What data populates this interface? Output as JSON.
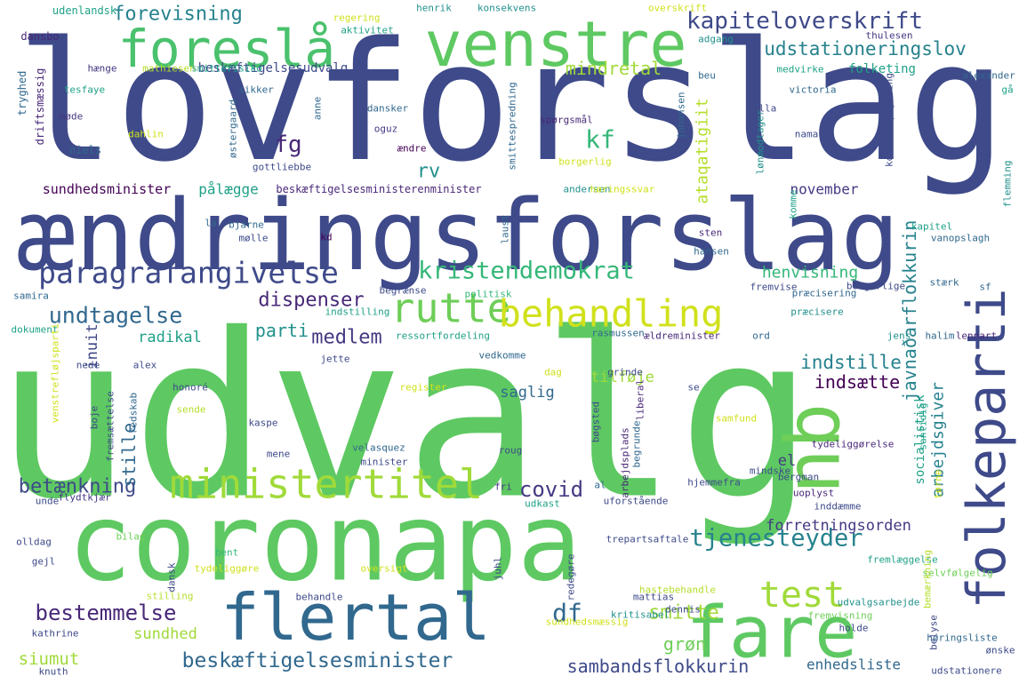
{
  "word_cloud": {
    "words": [
      {
        "text": "lovforslag",
        "color": "#3e4a89"
      },
      {
        "text": "udvalg",
        "color": "#5ec962"
      },
      {
        "text": "ændringsforslag",
        "color": "#3e4a89"
      },
      {
        "text": "coronapa",
        "color": "#5ec962"
      },
      {
        "text": "venstre",
        "color": "#5ec962"
      },
      {
        "text": "foreslå",
        "color": "#4ac16d"
      },
      {
        "text": "folkeparti",
        "color": "#3e4a89"
      },
      {
        "text": "fare",
        "color": "#5ec962"
      },
      {
        "text": "flertal",
        "color": "#31688e"
      },
      {
        "text": "nb",
        "color": "#6ece58"
      },
      {
        "text": "ministertitel",
        "color": "#a0da39"
      },
      {
        "text": "rutte",
        "color": "#6ece58"
      },
      {
        "text": "behandling",
        "color": "#d0e11c"
      },
      {
        "text": "paragrafangivelse",
        "color": "#3e4a89"
      },
      {
        "text": "kristendemokrat",
        "color": "#35b779"
      },
      {
        "text": "kapiteloverskrift",
        "color": "#3e4a89"
      },
      {
        "text": "udstationeringslov",
        "color": "#26828e"
      },
      {
        "text": "forevisning",
        "color": "#26828e"
      },
      {
        "text": "mindretal",
        "color": "#a0da39"
      },
      {
        "text": "tjenesteyder",
        "color": "#26828e"
      },
      {
        "text": "test",
        "color": "#a0da39"
      },
      {
        "text": "undtagelse",
        "color": "#31688e"
      },
      {
        "text": "bestemmelse",
        "color": "#482878"
      },
      {
        "text": "beskæftigelsesminister",
        "color": "#31688e"
      },
      {
        "text": "sambandsflokkurin",
        "color": "#3e4a89"
      },
      {
        "text": "javnaðarflokkurin",
        "color": "#26828e"
      },
      {
        "text": "arbejdsgiver",
        "color": "#26828e"
      },
      {
        "text": "betænkning",
        "color": "#3e4a89"
      },
      {
        "text": "siumut",
        "color": "#a0da39"
      },
      {
        "text": "indstille",
        "color": "#26828e"
      },
      {
        "text": "indsætte",
        "color": "#440154"
      },
      {
        "text": "dispenser",
        "color": "#482878"
      },
      {
        "text": "covid",
        "color": "#443983"
      },
      {
        "text": "medlem",
        "color": "#443983"
      },
      {
        "text": "parti",
        "color": "#21918c"
      },
      {
        "text": "df",
        "color": "#31688e"
      },
      {
        "text": "smitte",
        "color": "#a0da39"
      },
      {
        "text": "grøn",
        "color": "#6ece58"
      },
      {
        "text": "sundhed",
        "color": "#a0da39"
      },
      {
        "text": "forretningsorden",
        "color": "#443983"
      },
      {
        "text": "ataqatigiit",
        "color": "#b5de2b"
      },
      {
        "text": "kf",
        "color": "#35b779"
      },
      {
        "text": "fg",
        "color": "#482878"
      },
      {
        "text": "rv",
        "color": "#21918c"
      },
      {
        "text": "pålægge",
        "color": "#1fa188"
      },
      {
        "text": "november",
        "color": "#443983"
      },
      {
        "text": "henvisning",
        "color": "#35b779"
      },
      {
        "text": "radikal",
        "color": "#1fa188"
      },
      {
        "text": "inuit",
        "color": "#3e4a89"
      },
      {
        "text": "stille",
        "color": "#31688e"
      },
      {
        "text": "saglig",
        "color": "#31688e"
      },
      {
        "text": "tilføje",
        "color": "#a0da39"
      },
      {
        "text": "sundhedsminister",
        "color": "#440154"
      },
      {
        "text": "beskæftigelsesministerenminister",
        "color": "#482878"
      },
      {
        "text": "beskæftigelsesudvalg",
        "color": "#3e4a89"
      },
      {
        "text": "folketing",
        "color": "#1fa188"
      },
      {
        "text": "socialistisk",
        "color": "#1fa188"
      },
      {
        "text": "enhedsliste",
        "color": "#31688e"
      },
      {
        "text": "el",
        "color": "#443983"
      },
      {
        "text": "udenlandsk",
        "color": "#1fa188"
      },
      {
        "text": "regering",
        "color": "#d0e11c"
      },
      {
        "text": "henrik",
        "color": "#21918c"
      },
      {
        "text": "konsekvens",
        "color": "#21918c"
      },
      {
        "text": "overskrift",
        "color": "#d0e11c"
      },
      {
        "text": "dansbo",
        "color": "#482878"
      },
      {
        "text": "aktivitet",
        "color": "#1fa188"
      },
      {
        "text": "adgang",
        "color": "#21918c"
      },
      {
        "text": "thulesen",
        "color": "#443983"
      },
      {
        "text": "hænge",
        "color": "#443983"
      },
      {
        "text": "mathiesen",
        "color": "#b5de2b"
      },
      {
        "text": "smitterisiko",
        "color": "#1fa188"
      },
      {
        "text": "beu",
        "color": "#31688e"
      },
      {
        "text": "medvirke",
        "color": "#1fa188"
      },
      {
        "text": "alexander",
        "color": "#31688e"
      },
      {
        "text": "tryghed",
        "color": "#31688e"
      },
      {
        "text": "tesfaye",
        "color": "#1fa188"
      },
      {
        "text": "sikker",
        "color": "#31688e"
      },
      {
        "text": "victoria",
        "color": "#31688e"
      },
      {
        "text": "gå",
        "color": "#1fa188"
      },
      {
        "text": "ulla",
        "color": "#3e4a89"
      },
      {
        "text": "driftsmæssig",
        "color": "#482878"
      },
      {
        "text": "møde",
        "color": "#443983"
      },
      {
        "text": "anne",
        "color": "#31688e"
      },
      {
        "text": "dansker",
        "color": "#31688e"
      },
      {
        "text": "spørgsmål",
        "color": "#482878"
      },
      {
        "text": "johansen",
        "color": "#31688e"
      },
      {
        "text": "lønmodtager",
        "color": "#21918c"
      },
      {
        "text": "kontaktoplysning",
        "color": "#3e4a89"
      },
      {
        "text": "dahlin",
        "color": "#d0e11c"
      },
      {
        "text": "østergaard",
        "color": "#31688e"
      },
      {
        "text": "oguz",
        "color": "#443983"
      },
      {
        "text": "nama",
        "color": "#3e4a89"
      },
      {
        "text": "niels",
        "color": "#31688e"
      },
      {
        "text": "ændre",
        "color": "#440154"
      },
      {
        "text": "smittespredning",
        "color": "#31688e"
      },
      {
        "text": "gottliebbe",
        "color": "#3e4a89"
      },
      {
        "text": "borgerlig",
        "color": "#d0e11c"
      },
      {
        "text": "andersen",
        "color": "#21918c"
      },
      {
        "text": "høringssvar",
        "color": "#d0e11c"
      },
      {
        "text": "flemming",
        "color": "#21918c"
      },
      {
        "text": "la",
        "color": "#31688e"
      },
      {
        "text": "bjarne",
        "color": "#31688e"
      },
      {
        "text": "mølle",
        "color": "#3e4a89"
      },
      {
        "text": "kd",
        "color": "#440154"
      },
      {
        "text": "laust",
        "color": "#31688e"
      },
      {
        "text": "komme",
        "color": "#1fa188"
      },
      {
        "text": "kapitel",
        "color": "#1fa188"
      },
      {
        "text": "sten",
        "color": "#482878"
      },
      {
        "text": "vanopslagh",
        "color": "#31688e"
      },
      {
        "text": "hansen",
        "color": "#31688e"
      },
      {
        "text": "samira",
        "color": "#31688e"
      },
      {
        "text": "begrænse",
        "color": "#3e4a89"
      },
      {
        "text": "politisk",
        "color": "#35b779"
      },
      {
        "text": "fremvise",
        "color": "#3e4a89"
      },
      {
        "text": "borgerlige",
        "color": "#3e4a89"
      },
      {
        "text": "stærk",
        "color": "#31688e"
      },
      {
        "text": "sf",
        "color": "#31688e"
      },
      {
        "text": "præcisering",
        "color": "#31688e"
      },
      {
        "text": "indstilling",
        "color": "#1fa188"
      },
      {
        "text": "dokument",
        "color": "#1fa188"
      },
      {
        "text": "ressortfordeling",
        "color": "#1fa188"
      },
      {
        "text": "præcisere",
        "color": "#21918c"
      },
      {
        "text": "jens",
        "color": "#21918c"
      },
      {
        "text": "halim",
        "color": "#31688e"
      },
      {
        "text": "lennart",
        "color": "#482878"
      },
      {
        "text": "ældreminister",
        "color": "#482878"
      },
      {
        "text": "ord",
        "color": "#31688e"
      },
      {
        "text": "rasmussen",
        "color": "#31688e"
      },
      {
        "text": "venstrefløjsparti",
        "color": "#d0e11c"
      },
      {
        "text": "nede",
        "color": "#3e4a89"
      },
      {
        "text": "vedkomme",
        "color": "#31688e"
      },
      {
        "text": "jette",
        "color": "#3e4a89"
      },
      {
        "text": "alex",
        "color": "#3e4a89"
      },
      {
        "text": "dag",
        "color": "#d0e11c"
      },
      {
        "text": "grinde",
        "color": "#3e4a89"
      },
      {
        "text": "register",
        "color": "#d0e11c"
      },
      {
        "text": "liberal",
        "color": "#482878"
      },
      {
        "text": "se",
        "color": "#3e4a89"
      },
      {
        "text": "honoré",
        "color": "#3e4a89"
      },
      {
        "text": "sende",
        "color": "#b5de2b"
      },
      {
        "text": "samfund",
        "color": "#d0e11c"
      },
      {
        "text": "santidig",
        "color": "#1fa188"
      },
      {
        "text": "kaspe",
        "color": "#3e4a89"
      },
      {
        "text": "boje",
        "color": "#3e4a89"
      },
      {
        "text": "fremsættelse",
        "color": "#3e4a89"
      },
      {
        "text": "redskab",
        "color": "#31688e"
      },
      {
        "text": "tydeliggørelse",
        "color": "#482878"
      },
      {
        "text": "bøgsted",
        "color": "#3e4a89"
      },
      {
        "text": "begrunde",
        "color": "#31688e"
      },
      {
        "text": "arbejdsplads",
        "color": "#482878"
      },
      {
        "text": "velasquez",
        "color": "#31688e"
      },
      {
        "text": "roug",
        "color": "#3e4a89"
      },
      {
        "text": "mene",
        "color": "#3e4a89"
      },
      {
        "text": "minister",
        "color": "#3e4a89"
      },
      {
        "text": "mindske",
        "color": "#3e4a89"
      },
      {
        "text": "bergman",
        "color": "#3e4a89"
      },
      {
        "text": "tørne",
        "color": "#d0e11c"
      },
      {
        "text": "hjemmefra",
        "color": "#3e4a89"
      },
      {
        "text": "unde",
        "color": "#3e4a89"
      },
      {
        "text": "flydtkjær",
        "color": "#443983"
      },
      {
        "text": "fri",
        "color": "#443983"
      },
      {
        "text": "al",
        "color": "#31688e"
      },
      {
        "text": "udkast",
        "color": "#1fa188"
      },
      {
        "text": "uforstående",
        "color": "#3e4a89"
      },
      {
        "text": "uoplyst",
        "color": "#482878"
      },
      {
        "text": "inddæmme",
        "color": "#3e4a89"
      },
      {
        "text": "olldag",
        "color": "#3e4a89"
      },
      {
        "text": "bilag",
        "color": "#6ece58"
      },
      {
        "text": "bent",
        "color": "#35b779"
      },
      {
        "text": "oversigt",
        "color": "#d0e11c"
      },
      {
        "text": "juhl",
        "color": "#3e4a89"
      },
      {
        "text": "trepartsaftale",
        "color": "#3e4a89"
      },
      {
        "text": "fremlæggelse",
        "color": "#1fa188"
      },
      {
        "text": "selvfølgelig",
        "color": "#6ece58"
      },
      {
        "text": "gejl",
        "color": "#3e4a89"
      },
      {
        "text": "dansk",
        "color": "#3e4a89"
      },
      {
        "text": "tydeliggøre",
        "color": "#d0e11c"
      },
      {
        "text": "redegøre",
        "color": "#3e4a89"
      },
      {
        "text": "hastebehandle",
        "color": "#b5de2b"
      },
      {
        "text": "bemærkning",
        "color": "#b5de2b"
      },
      {
        "text": "stilling",
        "color": "#b5de2b"
      },
      {
        "text": "behandle",
        "color": "#3e4a89"
      },
      {
        "text": "dennis",
        "color": "#3e4a89"
      },
      {
        "text": "mattias",
        "color": "#3e4a89"
      },
      {
        "text": "udvalgsarbejde",
        "color": "#21918c"
      },
      {
        "text": "fremvisning",
        "color": "#6ece58"
      },
      {
        "text": "holde",
        "color": "#3e4a89"
      },
      {
        "text": "kathrine",
        "color": "#3e4a89"
      },
      {
        "text": "sundhedsmæssig",
        "color": "#d0e11c"
      },
      {
        "text": "kritisabel",
        "color": "#21918c"
      },
      {
        "text": "høringsliste",
        "color": "#31688e"
      },
      {
        "text": "belyse",
        "color": "#3e4a89"
      },
      {
        "text": "ønske",
        "color": "#3e4a89"
      },
      {
        "text": "knuth",
        "color": "#3e4a89"
      },
      {
        "text": "udstationere",
        "color": "#3e4a89"
      },
      {
        "text": "indeholde",
        "color": "#3e4a89"
      }
    ]
  }
}
